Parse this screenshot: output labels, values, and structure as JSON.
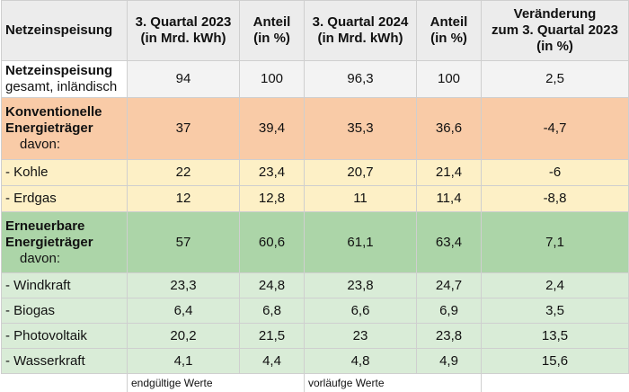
{
  "header": {
    "col1": "Netzeinspeisung",
    "col2_line1": "3. Quartal 2023",
    "col2_line2": "(in Mrd. kWh)",
    "col3_line1": "Anteil",
    "col3_line2": "(in %)",
    "col4_line1": "3. Quartal 2024",
    "col4_line2": "(in Mrd. kWh)",
    "col5_line1": "Anteil",
    "col5_line2": "(in %)",
    "col6_line1": "Veränderung",
    "col6_line2": "zum 3. Quartal 2023",
    "col6_line3": "(in %)"
  },
  "total": {
    "label": "Netzeinspeisung",
    "sublabel": "gesamt, inländisch",
    "q3_2023": "94",
    "share_2023": "100",
    "q3_2024": "96,3",
    "share_2024": "100",
    "change": "2,5"
  },
  "conventional": {
    "label_line1": "Konventionelle",
    "label_line2": "Energieträger",
    "davon": "davon:",
    "q3_2023": "37",
    "share_2023": "39,4",
    "q3_2024": "35,3",
    "share_2024": "36,6",
    "change": "-4,7",
    "items": [
      {
        "label": "- Kohle",
        "q3_2023": "22",
        "share_2023": "23,4",
        "q3_2024": "20,7",
        "share_2024": "21,4",
        "change": "-6"
      },
      {
        "label": "- Erdgas",
        "q3_2023": "12",
        "share_2023": "12,8",
        "q3_2024": "11",
        "share_2024": "11,4",
        "change": "-8,8"
      }
    ]
  },
  "renewable": {
    "label_line1": "Erneuerbare",
    "label_line2": "Energieträger",
    "davon": "davon:",
    "q3_2023": "57",
    "share_2023": "60,6",
    "q3_2024": "61,1",
    "share_2024": "63,4",
    "change": "7,1",
    "items": [
      {
        "label": "- Windkraft",
        "q3_2023": "23,3",
        "share_2023": "24,8",
        "q3_2024": "23,8",
        "share_2024": "24,7",
        "change": "2,4"
      },
      {
        "label": "- Biogas",
        "q3_2023": "6,4",
        "share_2023": "6,8",
        "q3_2024": "6,6",
        "share_2024": "6,9",
        "change": "3,5"
      },
      {
        "label": "- Photovoltaik",
        "q3_2023": "20,2",
        "share_2023": "21,5",
        "q3_2024": "23",
        "share_2024": "23,8",
        "change": "13,5"
      },
      {
        "label": "- Wasserkraft",
        "q3_2023": "4,1",
        "share_2023": "4,4",
        "q3_2024": "4,8",
        "share_2024": "4,9",
        "change": "15,6"
      }
    ]
  },
  "footer": {
    "note_2023": "endgültige Werte",
    "note_2024": "vorläufge Werte"
  },
  "colors": {
    "header_bg": "#ececec",
    "conventional_head": "#f9cba7",
    "conventional_items": "#fdf0c6",
    "renewable_head": "#acd5a8",
    "renewable_items": "#d9ecd7"
  }
}
